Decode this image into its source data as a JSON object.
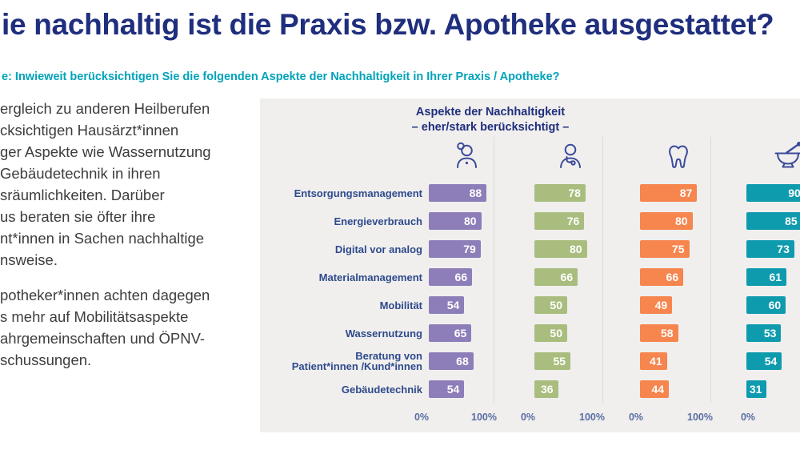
{
  "page": {
    "title": "ie nachhaltig ist die Praxis bzw. Apotheke ausgestattet?",
    "question": "e: Inwieweit berücksichtigen Sie die folgenden Aspekte der Nachhaltigkeit in Ihrer Praxis / Apotheke?"
  },
  "commentary": {
    "paragraph1_lines": [
      "ergleich zu anderen Heilberufen",
      "cksichtigen Hausärzt*innen",
      "ger Aspekte wie Wassernutzung",
      "Gebäudetechnik in ihren",
      "sräumlichkeiten. Darüber",
      "us beraten sie öfter ihre",
      "nt*innen in Sachen nachhaltige",
      "nsweise."
    ],
    "paragraph2_lines": [
      "potheker*innen achten dagegen",
      "s mehr auf Mobilitätsaspekte",
      "ahrgemeinschaften und ÖPNV-",
      "schussungen."
    ]
  },
  "chart": {
    "header_line1": "Aspekte der Nachhaltigkeit",
    "header_line2": "– eher/stark berücksichtigt –",
    "axis_min_label": "0%",
    "axis_max_label": "100%"
  },
  "chart_data": {
    "type": "bar",
    "orientation": "horizontal",
    "title": "Aspekte der Nachhaltigkeit – eher/stark berücksichtigt –",
    "xlim": [
      0,
      100
    ],
    "x_tick_labels": [
      "0%",
      "100%"
    ],
    "grid": "light vertical line at 100% of each column",
    "legend": "none – series identified by icons above each column",
    "categories": [
      "Entsorgungsmanagement",
      "Energieverbrauch",
      "Digital vor analog",
      "Materialmanagement",
      "Mobilität",
      "Wassernutzung",
      "Beratung von\nPatient*innen /Kund*innen",
      "Gebäudetechnik"
    ],
    "series": [
      {
        "icon": "female-doctor-icon",
        "color": "#8d7eb9",
        "values": [
          88,
          80,
          79,
          66,
          54,
          65,
          68,
          54
        ]
      },
      {
        "icon": "doctor-stethoscope-icon",
        "color": "#a9bd7e",
        "values": [
          78,
          76,
          80,
          66,
          50,
          50,
          55,
          36
        ]
      },
      {
        "icon": "tooth-icon",
        "color": "#f6854e",
        "values": [
          87,
          80,
          75,
          66,
          49,
          58,
          41,
          44
        ]
      },
      {
        "icon": "mortar-pestle-icon",
        "color": "#0f9bae",
        "values": [
          90,
          85,
          73,
          61,
          60,
          53,
          54,
          31
        ],
        "note": "column clipped at right image edge; first two value labels only partially visible"
      }
    ]
  },
  "colors": {
    "title_navy": "#1f2e7d",
    "question_cyan": "#00a3ba",
    "body_text": "#3d3d3d",
    "row_label_blue": "#2e4a8c",
    "axis_label_blue": "#5b6da3",
    "panel_background": "#f0efee",
    "bar_purple": "#8d7eb9",
    "bar_green": "#a9bd7e",
    "bar_orange": "#f6854e",
    "bar_teal": "#0f9bae"
  }
}
